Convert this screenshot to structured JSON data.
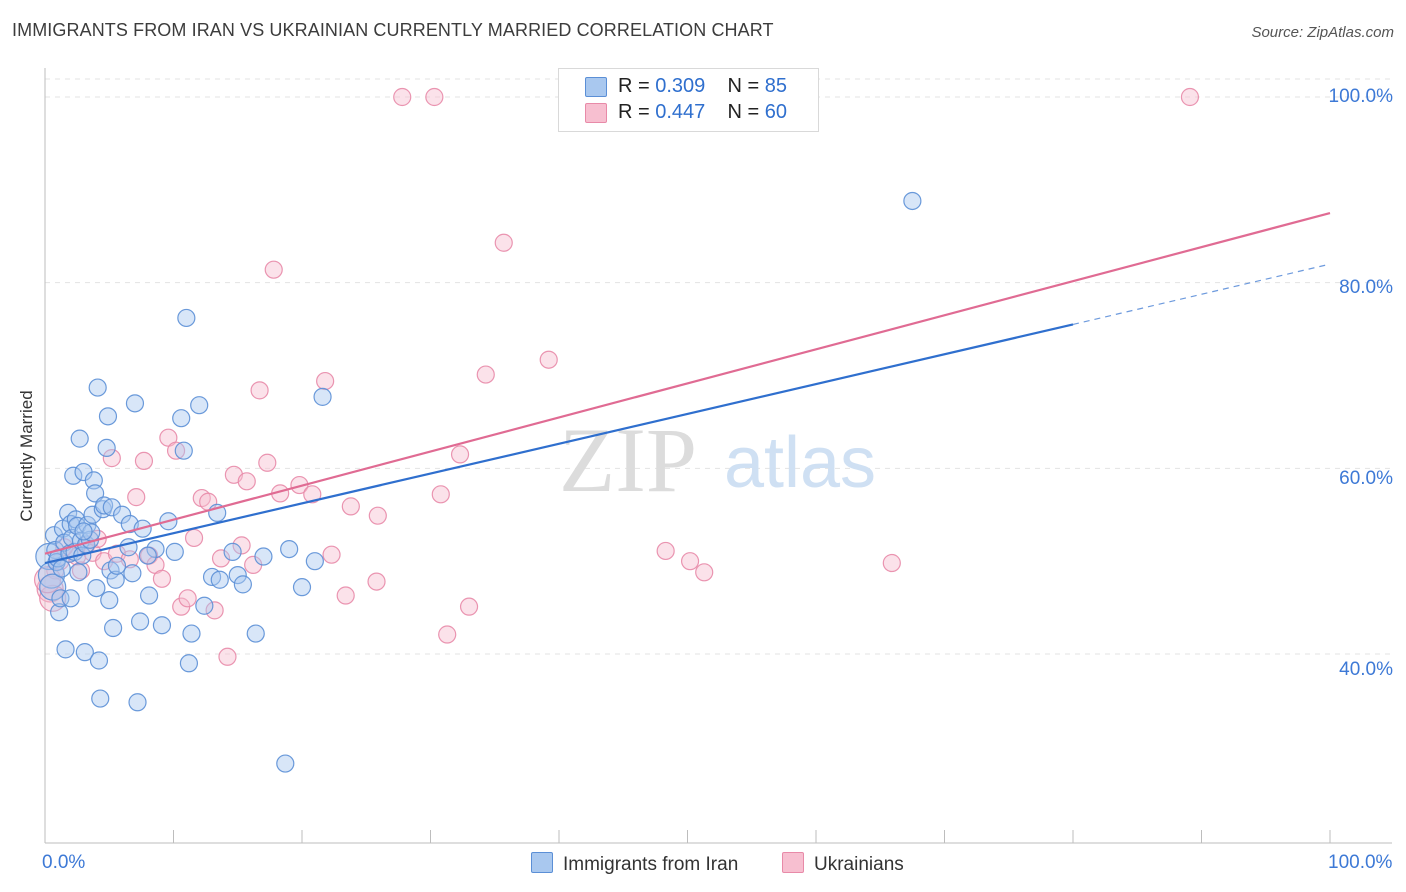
{
  "title": "IMMIGRANTS FROM IRAN VS UKRAINIAN CURRENTLY MARRIED CORRELATION CHART",
  "source": "Source: ZipAtlas.com",
  "watermark": {
    "zip": "ZIP",
    "atlas": "atlas"
  },
  "colors": {
    "blue_fill": "#a9c8ef",
    "blue_stroke": "#5b8fd6",
    "blue_line": "#2f6fce",
    "pink_fill": "#f7bfd0",
    "pink_stroke": "#e88aa8",
    "pink_line": "#e06b93",
    "grid": "#e3e3e3",
    "axis_text": "#3d79d6"
  },
  "legend": {
    "rows": [
      {
        "r_label": "R =",
        "r_value": "0.309",
        "n_label": "N =",
        "n_value": "85"
      },
      {
        "r_label": "R =",
        "r_value": "0.447",
        "n_label": "N =",
        "n_value": "60"
      }
    ]
  },
  "chart_data": {
    "type": "scatter",
    "title": "IMMIGRANTS FROM IRAN VS UKRAINIAN CURRENTLY MARRIED CORRELATION CHART",
    "xlabel": "",
    "ylabel": "Currently Married",
    "xlim": [
      0,
      100
    ],
    "ylim": [
      20,
      102
    ],
    "x_tick_labels": [
      "0.0%",
      "100.0%"
    ],
    "y_ticks": [
      40,
      60,
      80,
      100
    ],
    "y_tick_labels": [
      "40.0%",
      "60.0%",
      "80.0%",
      "100.0%"
    ],
    "grid": true,
    "series": [
      {
        "name": "Immigrants from Iran",
        "r": 0.309,
        "n": 85,
        "trend": {
          "x0": 0,
          "y0": 49.8,
          "x1": 80,
          "y1": 75.5,
          "dashed_to_x": 100,
          "dashed_to_y": 82.0
        },
        "points": [
          [
            0.3,
            50.5
          ],
          [
            0.5,
            48.5
          ],
          [
            0.6,
            47.2
          ],
          [
            0.7,
            52.8
          ],
          [
            0.8,
            51.2
          ],
          [
            0.9,
            49.9
          ],
          [
            1.0,
            50.3
          ],
          [
            1.1,
            44.5
          ],
          [
            1.2,
            46.0
          ],
          [
            1.4,
            53.5
          ],
          [
            1.5,
            52.0
          ],
          [
            1.6,
            40.5
          ],
          [
            1.8,
            55.2
          ],
          [
            1.9,
            50.8
          ],
          [
            2.0,
            54.0
          ],
          [
            2.1,
            52.5
          ],
          [
            2.2,
            59.2
          ],
          [
            2.3,
            51.0
          ],
          [
            2.4,
            54.5
          ],
          [
            2.5,
            53.8
          ],
          [
            2.6,
            48.8
          ],
          [
            2.7,
            63.2
          ],
          [
            2.8,
            52.2
          ],
          [
            2.9,
            50.6
          ],
          [
            3.0,
            59.6
          ],
          [
            3.1,
            40.2
          ],
          [
            3.2,
            51.8
          ],
          [
            3.3,
            53.9
          ],
          [
            3.5,
            52.3
          ],
          [
            3.6,
            53.1
          ],
          [
            3.7,
            55.0
          ],
          [
            3.8,
            58.7
          ],
          [
            3.9,
            57.3
          ],
          [
            4.0,
            47.1
          ],
          [
            4.1,
            68.7
          ],
          [
            4.2,
            39.3
          ],
          [
            4.3,
            35.2
          ],
          [
            4.5,
            55.6
          ],
          [
            4.6,
            56.0
          ],
          [
            4.8,
            62.2
          ],
          [
            4.9,
            65.6
          ],
          [
            5.0,
            45.8
          ],
          [
            5.1,
            49.0
          ],
          [
            5.2,
            55.8
          ],
          [
            5.3,
            42.8
          ],
          [
            5.5,
            48.0
          ],
          [
            5.6,
            49.5
          ],
          [
            6.0,
            55.0
          ],
          [
            6.6,
            54.0
          ],
          [
            6.8,
            48.7
          ],
          [
            7.0,
            67.0
          ],
          [
            7.2,
            34.8
          ],
          [
            7.4,
            43.5
          ],
          [
            7.6,
            53.5
          ],
          [
            8.1,
            46.3
          ],
          [
            8.6,
            51.3
          ],
          [
            9.1,
            43.1
          ],
          [
            9.6,
            54.3
          ],
          [
            10.1,
            51.0
          ],
          [
            10.6,
            65.4
          ],
          [
            10.8,
            61.9
          ],
          [
            11.0,
            76.2
          ],
          [
            11.2,
            39.0
          ],
          [
            11.4,
            42.2
          ],
          [
            12.0,
            66.8
          ],
          [
            12.4,
            45.2
          ],
          [
            13.0,
            48.3
          ],
          [
            13.4,
            55.2
          ],
          [
            13.6,
            48.0
          ],
          [
            14.6,
            51.0
          ],
          [
            15.0,
            48.5
          ],
          [
            15.4,
            47.5
          ],
          [
            16.4,
            42.2
          ],
          [
            17.0,
            50.5
          ],
          [
            18.7,
            28.2
          ],
          [
            19.0,
            51.3
          ],
          [
            20.0,
            47.2
          ],
          [
            21.0,
            50.0
          ],
          [
            21.6,
            67.7
          ],
          [
            67.5,
            88.8
          ],
          [
            2.0,
            46.0
          ],
          [
            3.0,
            53.2
          ],
          [
            6.5,
            51.5
          ],
          [
            8.0,
            50.6
          ],
          [
            1.3,
            49.2
          ]
        ]
      },
      {
        "name": "Ukrainians",
        "r": 0.447,
        "n": 60,
        "trend": {
          "x0": 0,
          "y0": 50.8,
          "x1": 100,
          "y1": 87.5
        },
        "points": [
          [
            0.4,
            47.0
          ],
          [
            0.6,
            46.0
          ],
          [
            0.8,
            49.0
          ],
          [
            1.2,
            50.0
          ],
          [
            2.5,
            50.5
          ],
          [
            2.8,
            49.0
          ],
          [
            3.2,
            51.7
          ],
          [
            3.7,
            50.9
          ],
          [
            4.1,
            52.4
          ],
          [
            4.6,
            50.0
          ],
          [
            5.2,
            61.1
          ],
          [
            5.6,
            50.8
          ],
          [
            6.6,
            50.2
          ],
          [
            7.1,
            56.9
          ],
          [
            7.7,
            60.8
          ],
          [
            8.1,
            50.6
          ],
          [
            8.6,
            49.6
          ],
          [
            9.1,
            48.1
          ],
          [
            9.6,
            63.3
          ],
          [
            10.2,
            61.9
          ],
          [
            10.6,
            45.1
          ],
          [
            11.1,
            46.0
          ],
          [
            11.6,
            52.5
          ],
          [
            12.2,
            56.8
          ],
          [
            12.7,
            56.4
          ],
          [
            13.2,
            44.7
          ],
          [
            13.7,
            50.3
          ],
          [
            14.2,
            39.7
          ],
          [
            14.7,
            59.3
          ],
          [
            15.3,
            51.7
          ],
          [
            15.7,
            58.6
          ],
          [
            16.2,
            49.6
          ],
          [
            16.7,
            68.4
          ],
          [
            17.3,
            60.6
          ],
          [
            17.8,
            81.4
          ],
          [
            18.3,
            57.3
          ],
          [
            19.8,
            58.2
          ],
          [
            20.8,
            57.2
          ],
          [
            21.8,
            69.4
          ],
          [
            22.3,
            50.7
          ],
          [
            23.4,
            46.3
          ],
          [
            23.8,
            55.9
          ],
          [
            25.8,
            47.8
          ],
          [
            25.9,
            54.9
          ],
          [
            27.8,
            100.0
          ],
          [
            30.3,
            100.0
          ],
          [
            30.8,
            57.2
          ],
          [
            31.3,
            42.1
          ],
          [
            32.3,
            61.5
          ],
          [
            33.0,
            45.1
          ],
          [
            34.3,
            70.1
          ],
          [
            35.7,
            84.3
          ],
          [
            39.2,
            71.7
          ],
          [
            48.3,
            51.1
          ],
          [
            50.2,
            50.0
          ],
          [
            51.3,
            48.8
          ],
          [
            65.9,
            49.8
          ],
          [
            89.1,
            100.0
          ],
          [
            0.2,
            48.0
          ],
          [
            1.5,
            51.5
          ]
        ]
      }
    ]
  }
}
